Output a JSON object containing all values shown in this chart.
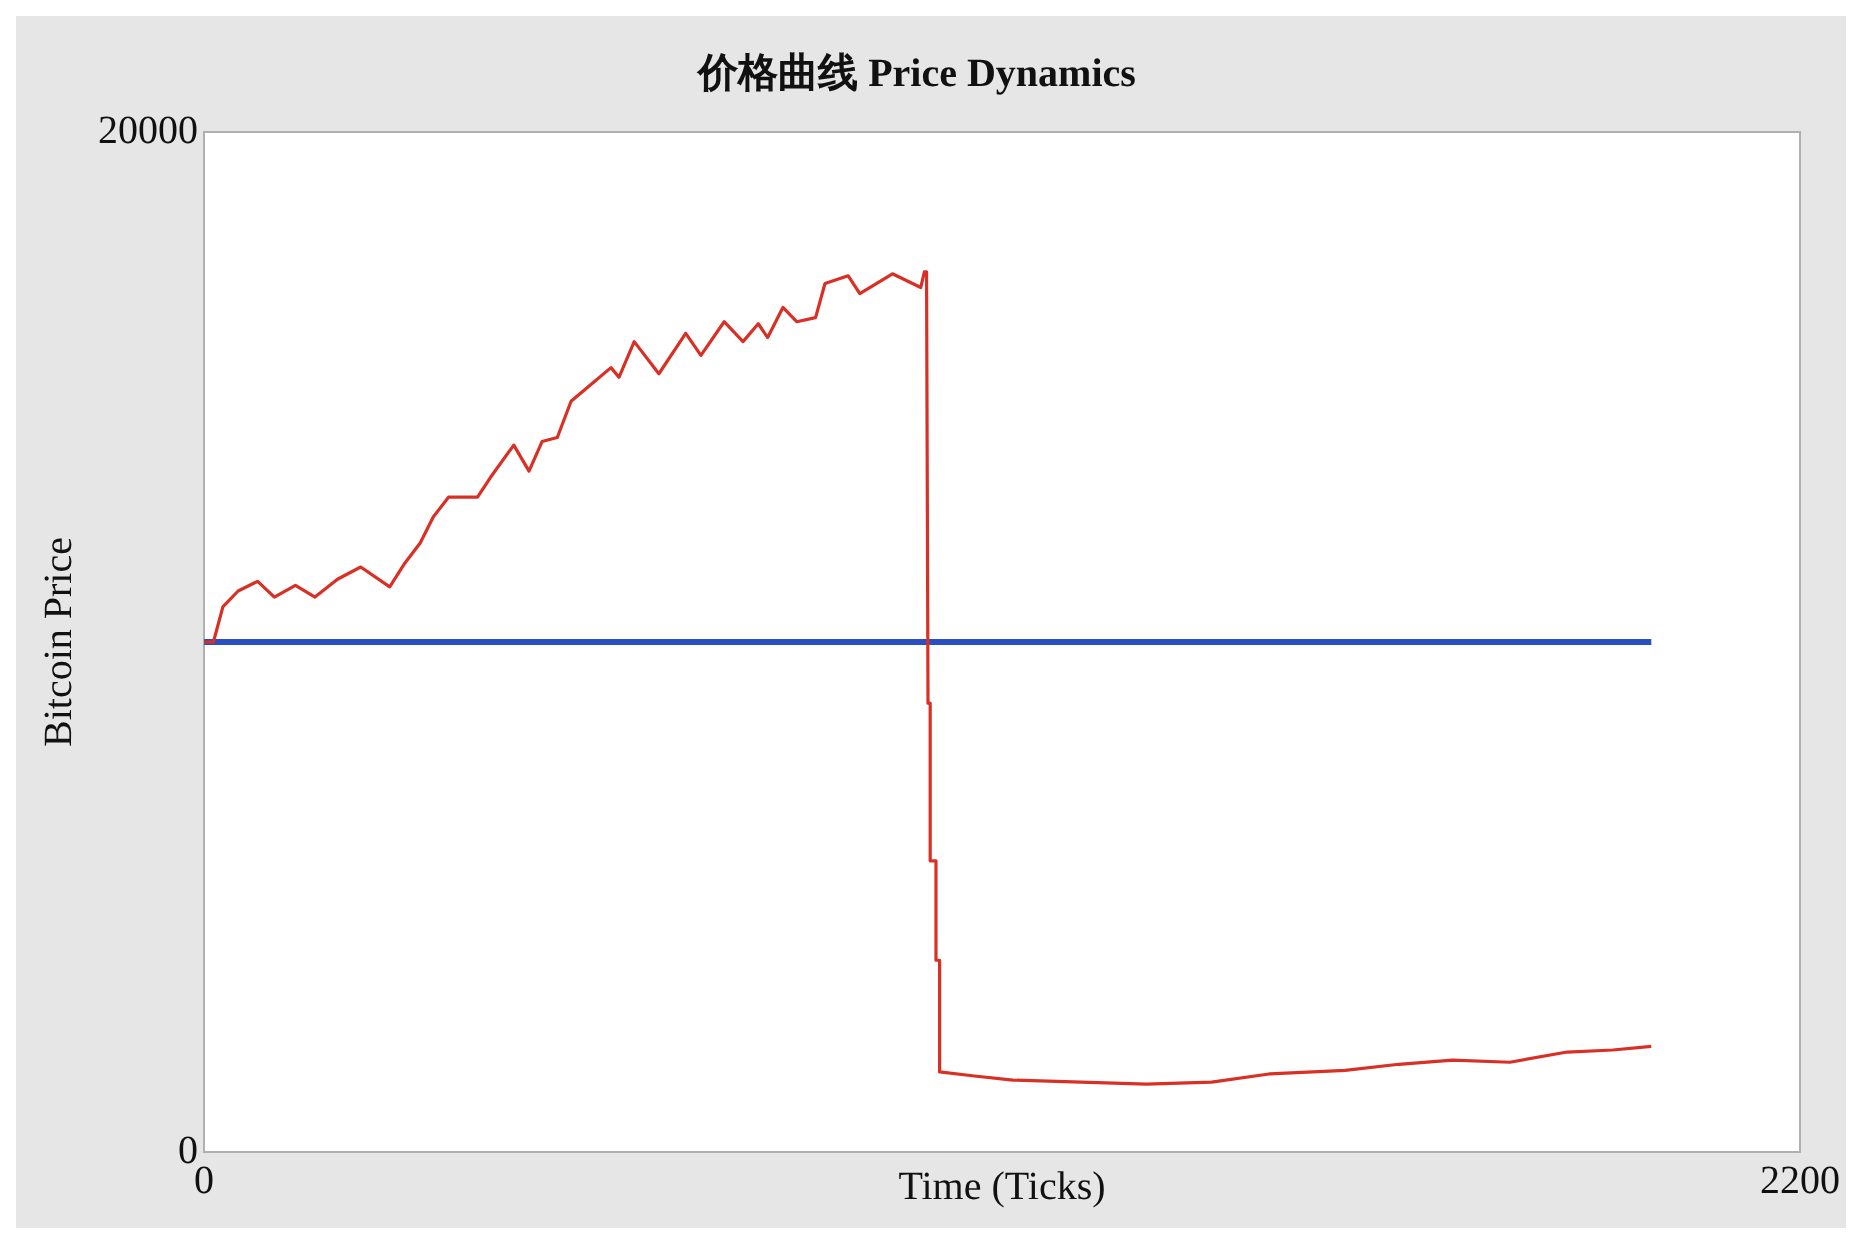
{
  "chart_data": {
    "type": "line",
    "title": "价格曲线 Price Dynamics",
    "xlabel": "Time (Ticks)",
    "ylabel": "Bitcoin Price",
    "xlim": [
      0,
      2200
    ],
    "xticks": [
      0,
      2200
    ],
    "ylim": [
      0,
      20000
    ],
    "yticks": [
      0,
      20000
    ],
    "grid": false,
    "marker": "none",
    "series": [
      {
        "color": "#d93025",
        "x": [
          0,
          13,
          26,
          47,
          74,
          97,
          126,
          153,
          184,
          216,
          256,
          277,
          298,
          316,
          337,
          377,
          395,
          427,
          448,
          466,
          487,
          506,
          535,
          561,
          572,
          593,
          627,
          664,
          685,
          717,
          743,
          764,
          777,
          798,
          817,
          843,
          856,
          888,
          904,
          949,
          988,
          993,
          996,
          998,
          1001,
          1001,
          1009,
          1009,
          1014,
          1014,
          1062,
          1115,
          1299,
          1389,
          1468,
          1573,
          1647,
          1721,
          1800,
          1879,
          1942,
          1995
        ],
        "values": [
          10000,
          10000,
          10690,
          11000,
          11190,
          10880,
          11110,
          10880,
          11230,
          11470,
          11080,
          11550,
          11940,
          12450,
          12840,
          12840,
          13230,
          13860,
          13350,
          13930,
          14010,
          14720,
          15070,
          15380,
          15190,
          15890,
          15260,
          16050,
          15620,
          16280,
          15890,
          16240,
          15970,
          16560,
          16280,
          16360,
          17030,
          17180,
          16830,
          17220,
          16950,
          17260,
          17260,
          8800,
          8800,
          5710,
          5710,
          3760,
          3760,
          1570,
          1490,
          1410,
          1330,
          1370,
          1530,
          1600,
          1720,
          1800,
          1760,
          1960,
          2000,
          2070
        ]
      },
      {
        "color": "#2a4fc0",
        "x": [
          0,
          1995
        ],
        "values": [
          10000,
          10000
        ]
      }
    ]
  }
}
